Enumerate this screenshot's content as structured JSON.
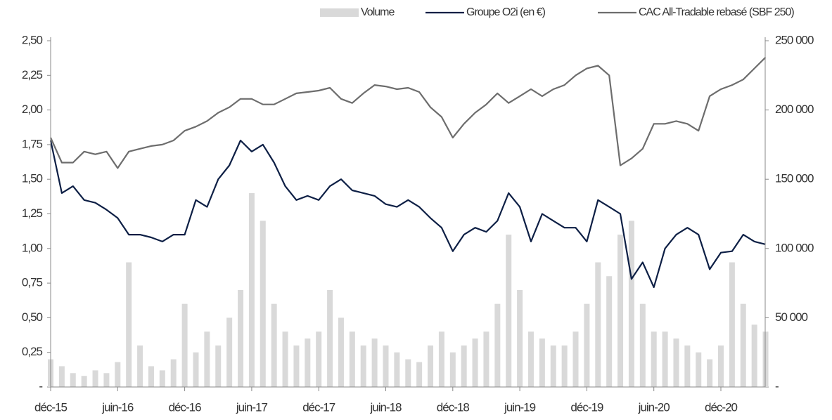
{
  "chart_data": {
    "type": "line",
    "categories": [
      "déc-15",
      null,
      null,
      null,
      null,
      null,
      "juin-16",
      null,
      null,
      null,
      null,
      null,
      "déc-16",
      null,
      null,
      null,
      null,
      null,
      "juin-17",
      null,
      null,
      null,
      null,
      null,
      "déc-17",
      null,
      null,
      null,
      null,
      null,
      "juin-18",
      null,
      null,
      null,
      null,
      null,
      "déc-18",
      null,
      null,
      null,
      null,
      null,
      "juin-19",
      null,
      null,
      null,
      null,
      null,
      "déc-19",
      null,
      null,
      null,
      null,
      null,
      "juin-20",
      null,
      null,
      null,
      null,
      null,
      "déc-20",
      null,
      null,
      null,
      null
    ],
    "series": [
      {
        "name": "Volume",
        "type": "bar",
        "axis": "y2",
        "color": "#d9d9d9",
        "values": [
          20000,
          15000,
          10000,
          8000,
          12000,
          10000,
          18000,
          90000,
          30000,
          15000,
          12000,
          20000,
          60000,
          25000,
          40000,
          30000,
          50000,
          70000,
          140000,
          120000,
          60000,
          40000,
          30000,
          35000,
          40000,
          70000,
          50000,
          40000,
          30000,
          35000,
          30000,
          25000,
          20000,
          18000,
          30000,
          40000,
          25000,
          30000,
          35000,
          40000,
          60000,
          110000,
          70000,
          40000,
          35000,
          30000,
          30000,
          40000,
          60000,
          90000,
          80000,
          110000,
          120000,
          60000,
          40000,
          40000,
          35000,
          30000,
          25000,
          20000,
          30000,
          90000,
          60000,
          45000,
          40000
        ]
      },
      {
        "name": "Groupe O2i (en €)",
        "color": "#0d1f45",
        "values": [
          1.78,
          1.4,
          1.45,
          1.35,
          1.33,
          1.28,
          1.22,
          1.1,
          1.1,
          1.08,
          1.05,
          1.1,
          1.1,
          1.35,
          1.3,
          1.5,
          1.6,
          1.78,
          1.7,
          1.75,
          1.62,
          1.45,
          1.35,
          1.38,
          1.35,
          1.45,
          1.5,
          1.42,
          1.4,
          1.38,
          1.32,
          1.3,
          1.35,
          1.3,
          1.22,
          1.15,
          0.98,
          1.1,
          1.15,
          1.12,
          1.2,
          1.4,
          1.3,
          1.05,
          1.25,
          1.2,
          1.15,
          1.15,
          1.05,
          1.35,
          1.3,
          1.25,
          0.78,
          0.9,
          0.72,
          1.0,
          1.1,
          1.15,
          1.1,
          0.85,
          0.97,
          0.98,
          1.1,
          1.05,
          1.03
        ]
      },
      {
        "name": "CAC All-Tradable rebasé (SBF 250)",
        "color": "#6d6d6d",
        "values": [
          1.8,
          1.62,
          1.62,
          1.7,
          1.68,
          1.7,
          1.58,
          1.7,
          1.72,
          1.74,
          1.75,
          1.78,
          1.85,
          1.88,
          1.92,
          1.98,
          2.02,
          2.08,
          2.08,
          2.04,
          2.04,
          2.08,
          2.12,
          2.13,
          2.14,
          2.16,
          2.08,
          2.05,
          2.12,
          2.18,
          2.17,
          2.15,
          2.16,
          2.13,
          2.02,
          1.95,
          1.8,
          1.9,
          1.98,
          2.04,
          2.12,
          2.05,
          2.1,
          2.15,
          2.1,
          2.15,
          2.18,
          2.25,
          2.3,
          2.32,
          2.25,
          1.6,
          1.65,
          1.72,
          1.9,
          1.9,
          1.92,
          1.9,
          1.85,
          2.1,
          2.15,
          2.18,
          2.22,
          2.3,
          2.38
        ]
      }
    ],
    "ylim": [
      0,
      2.5
    ],
    "yticks": [
      {
        "value": 0,
        "label": "-"
      },
      {
        "value": 0.25,
        "label": "0,25"
      },
      {
        "value": 0.5,
        "label": "0,50"
      },
      {
        "value": 0.75,
        "label": "0,75"
      },
      {
        "value": 1,
        "label": "1,00"
      },
      {
        "value": 1.25,
        "label": "1,25"
      },
      {
        "value": 1.5,
        "label": "1,50"
      },
      {
        "value": 1.75,
        "label": "1,75"
      },
      {
        "value": 2,
        "label": "2,00"
      },
      {
        "value": 2.25,
        "label": "2,25"
      },
      {
        "value": 2.5,
        "label": "2,50"
      }
    ],
    "y2lim": [
      0,
      250000
    ],
    "y2ticks": [
      {
        "value": 0,
        "label": "-"
      },
      {
        "value": 50000,
        "label": "50 000"
      },
      {
        "value": 100000,
        "label": "100 000"
      },
      {
        "value": 150000,
        "label": "150 000"
      },
      {
        "value": 200000,
        "label": "200 000"
      },
      {
        "value": 250000,
        "label": "250 000"
      }
    ],
    "legend": "top-right"
  }
}
